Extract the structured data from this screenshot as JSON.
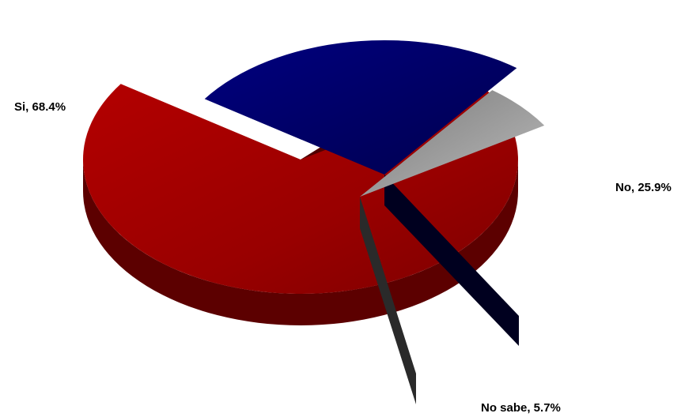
{
  "chart_data": {
    "type": "pie",
    "style": "3d-exploded",
    "legend": "none",
    "slices": [
      {
        "label": "Si, 68.4%",
        "category": "Si",
        "value": 68.4,
        "color": "#9b0000",
        "side_color": "#5c0000"
      },
      {
        "label": "No, 25.9%",
        "category": "No",
        "value": 25.9,
        "color": "#000066",
        "side_color": "#00002e"
      },
      {
        "label": "No sabe, 5.7%",
        "category": "No sabe",
        "value": 5.7,
        "color": "#8c8c8c",
        "side_color": "#3a3a3a"
      }
    ]
  }
}
